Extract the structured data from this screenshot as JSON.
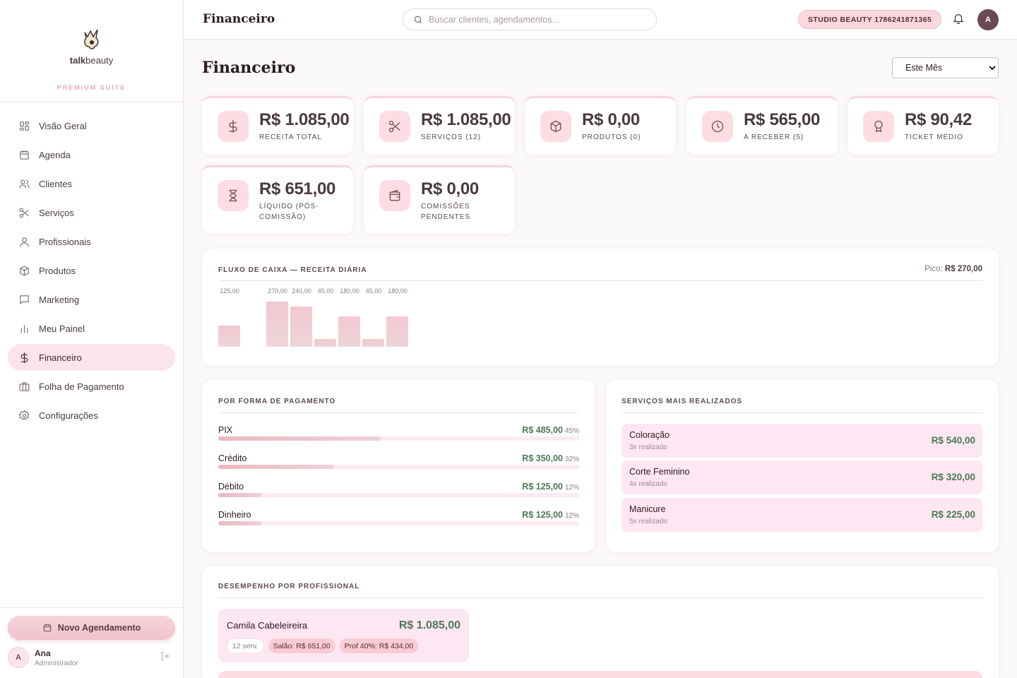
{
  "brand": {
    "name_bold": "talk",
    "name_rest": "beauty",
    "suite": "PREMIUM SUITE"
  },
  "nav": [
    {
      "label": "Visão Geral",
      "icon": "grid-icon"
    },
    {
      "label": "Agenda",
      "icon": "calendar-icon"
    },
    {
      "label": "Clientes",
      "icon": "users-icon"
    },
    {
      "label": "Serviços",
      "icon": "scissors-icon"
    },
    {
      "label": "Profissionais",
      "icon": "user-icon"
    },
    {
      "label": "Produtos",
      "icon": "box-icon"
    },
    {
      "label": "Marketing",
      "icon": "message-icon"
    },
    {
      "label": "Meu Painel",
      "icon": "bar-chart-icon"
    },
    {
      "label": "Financeiro",
      "icon": "dollar-icon",
      "active": true
    },
    {
      "label": "Folha de Pagamento",
      "icon": "briefcase-icon"
    },
    {
      "label": "Configurações",
      "icon": "gear-icon"
    }
  ],
  "sidebar_bottom": {
    "new_button": "Novo Agendamento",
    "user_initial": "A",
    "user_name": "Ana",
    "user_role": "Administrador"
  },
  "header": {
    "title": "Financeiro",
    "search_placeholder": "Buscar clientes, agendamentos...",
    "studio": "STUDIO BEAUTY 1786241871365",
    "avatar_initial": "A"
  },
  "page": {
    "title": "Financeiro",
    "period": {
      "selected": "Este Mês"
    }
  },
  "stats": [
    {
      "value": "R$ 1.085,00",
      "label": "RECEITA TOTAL",
      "icon": "dollar-icon"
    },
    {
      "value": "R$ 1.085,00",
      "label": "SERVIÇOS (12)",
      "icon": "scissors-icon"
    },
    {
      "value": "R$ 0,00",
      "label": "PRODUTOS (0)",
      "icon": "box-icon"
    },
    {
      "value": "R$ 565,00",
      "label": "A RECEBER (5)",
      "icon": "clock-icon"
    },
    {
      "value": "R$ 90,42",
      "label": "TICKET MÉDIO",
      "icon": "award-icon"
    },
    {
      "value": "R$ 651,00",
      "label": "LÍQUIDO (PÓS-COMISSÃO)",
      "icon": "hourglass-icon"
    },
    {
      "value": "R$ 0,00",
      "label": "COMISSÕES PENDENTES",
      "icon": "wallet-icon"
    }
  ],
  "cashflow": {
    "title": "FLUXO DE CAIXA — RECEITA DIÁRIA",
    "peak_label": "Pico:",
    "peak_value": "R$ 270,00"
  },
  "chart_data": {
    "type": "bar",
    "title": "FLUXO DE CAIXA — RECEITA DIÁRIA",
    "values": [
      125,
      0,
      270,
      240,
      45,
      180,
      45,
      180
    ],
    "value_labels": [
      "125,00",
      "",
      "270,00",
      "240,00",
      "45,00",
      "180,00",
      "45,00",
      "180,00"
    ],
    "ylim": [
      0,
      270
    ],
    "grid": false
  },
  "payments": {
    "title": "POR FORMA DE PAGAMENTO",
    "rows": [
      {
        "name": "PIX",
        "amount": "R$ 485,00",
        "pct": "45%",
        "fraction": 0.45
      },
      {
        "name": "Crédito",
        "amount": "R$ 350,00",
        "pct": "32%",
        "fraction": 0.32
      },
      {
        "name": "Débito",
        "amount": "R$ 125,00",
        "pct": "12%",
        "fraction": 0.12
      },
      {
        "name": "Dinheiro",
        "amount": "R$ 125,00",
        "pct": "12%",
        "fraction": 0.12
      }
    ]
  },
  "services": {
    "title": "SERVIÇOS MAIS REALIZADOS",
    "rows": [
      {
        "name": "Coloração",
        "count": "3x realizado",
        "amount": "R$ 540,00"
      },
      {
        "name": "Corte Feminino",
        "count": "4x realizado",
        "amount": "R$ 320,00"
      },
      {
        "name": "Manicure",
        "count": "5x realizado",
        "amount": "R$ 225,00"
      }
    ]
  },
  "professionals": {
    "title": "DESEMPENHO POR PROFISSIONAL",
    "rows": [
      {
        "name": "Camila Cabeleireira",
        "total": "R$ 1.085,00",
        "services": "12 serv.",
        "salon": "Salão: R$ 651,00",
        "prof": "Prof 40%: R$ 434,00"
      }
    ]
  },
  "colors": {
    "accent": "#fbe5ea",
    "green": "#4a7a55",
    "bar": "#f3c8d1"
  }
}
